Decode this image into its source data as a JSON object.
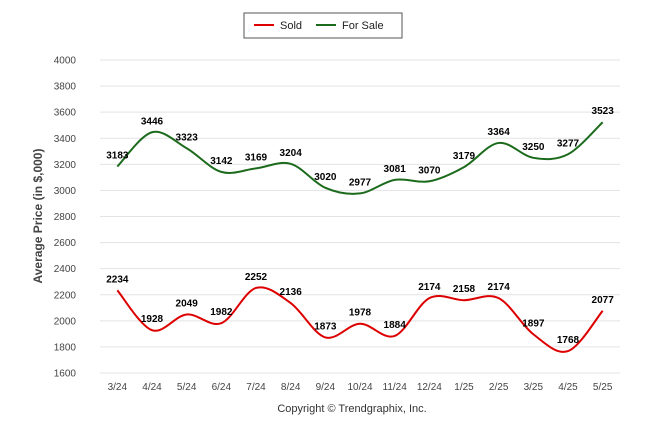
{
  "chart_data": {
    "type": "line",
    "categories": [
      "3/24",
      "4/24",
      "5/24",
      "6/24",
      "7/24",
      "8/24",
      "9/24",
      "10/24",
      "11/24",
      "12/24",
      "1/25",
      "2/25",
      "3/25",
      "4/25",
      "5/25"
    ],
    "series": [
      {
        "name": "Sold",
        "color": "#dd0000",
        "values": [
          2234,
          1928,
          2049,
          1982,
          2252,
          2136,
          1873,
          1978,
          1884,
          2174,
          2158,
          2174,
          1897,
          1768,
          2077
        ]
      },
      {
        "name": "For Sale",
        "color": "#1c6b1c",
        "values": [
          3183,
          3446,
          3323,
          3142,
          3169,
          3204,
          3020,
          2977,
          3081,
          3070,
          3179,
          3364,
          3250,
          3277,
          3523
        ]
      }
    ],
    "ylabel": "Average Price (in $,000)",
    "xlabel": "",
    "yticks": [
      1600,
      1800,
      2000,
      2200,
      2400,
      2600,
      2800,
      3000,
      3200,
      3400,
      3600,
      3800,
      4000
    ],
    "ylim": [
      1600,
      4000
    ],
    "grid": true,
    "legend_position": "top-center"
  },
  "footer": {
    "copyright": "Copyright © Trendgraphix, Inc."
  }
}
